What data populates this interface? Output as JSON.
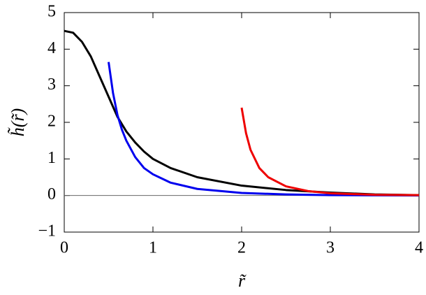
{
  "chart_data": {
    "type": "line",
    "xlabel": "r̃",
    "ylabel": "h̃(r̃)",
    "xlim": [
      0,
      4
    ],
    "ylim": [
      -1,
      5
    ],
    "xticks": [
      0,
      1,
      2,
      3,
      4
    ],
    "yticks": [
      {
        "value": -1,
        "label": "−1"
      },
      0,
      1,
      2,
      3,
      4,
      5
    ],
    "zero_line": 0,
    "series": [
      {
        "color": "#000000",
        "x": [
          0,
          0.1,
          0.2,
          0.3,
          0.4,
          0.5,
          0.6,
          0.7,
          0.8,
          0.9,
          1.0,
          1.2,
          1.5,
          2,
          2.5,
          3,
          3.5,
          4
        ],
        "values": [
          4.5,
          4.45,
          4.2,
          3.8,
          3.25,
          2.7,
          2.15,
          1.75,
          1.45,
          1.2,
          1.0,
          0.75,
          0.5,
          0.27,
          0.15,
          0.08,
          0.03,
          0.01
        ]
      },
      {
        "color": "#0000ee",
        "x": [
          0.5,
          0.55,
          0.6,
          0.65,
          0.7,
          0.8,
          0.9,
          1.0,
          1.2,
          1.5,
          2,
          2.5,
          3,
          4
        ],
        "values": [
          3.65,
          2.8,
          2.2,
          1.8,
          1.5,
          1.05,
          0.75,
          0.58,
          0.35,
          0.18,
          0.07,
          0.03,
          0.01,
          0
        ]
      },
      {
        "color": "#ee0000",
        "x": [
          2.0,
          2.05,
          2.1,
          2.2,
          2.3,
          2.5,
          2.75,
          3,
          3.5,
          4
        ],
        "values": [
          2.4,
          1.7,
          1.25,
          0.75,
          0.5,
          0.25,
          0.12,
          0.06,
          0.02,
          0.01
        ]
      }
    ]
  }
}
